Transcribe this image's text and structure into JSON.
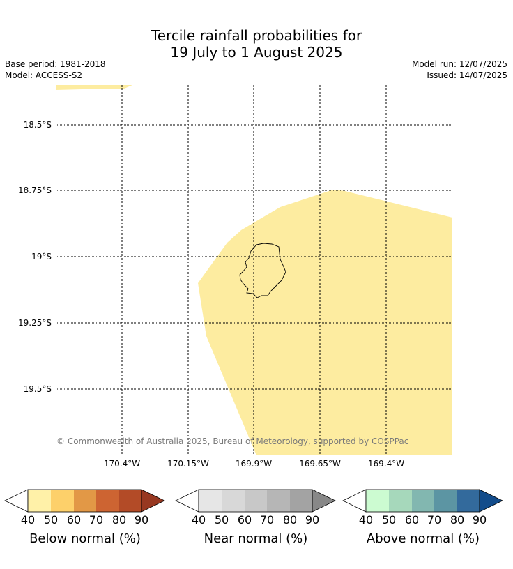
{
  "title": {
    "line1": "Tercile rainfall probabilities for",
    "line2": "19 July to 1 August 2025"
  },
  "meta": {
    "base_period": "Base period: 1981-2018",
    "model": "Model: ACCESS-S2",
    "model_run": "Model run: 12/07/2025",
    "issued": "Issued: 14/07/2025"
  },
  "map": {
    "lat_labels": [
      "18.5°S",
      "18.75°S",
      "19°S",
      "19.25°S",
      "19.5°S"
    ],
    "lon_labels": [
      "170.4°W",
      "170.15°W",
      "169.9°W",
      "169.65°W",
      "169.4°W"
    ],
    "copyright": "© Commonwealth of Australia 2025, Bureau of Meteorology, supported by COSPPac",
    "shading_color": "#fdeca0",
    "coast_color": "#000000"
  },
  "colorbars": [
    {
      "label": "Below normal (%)",
      "ticks": [
        "40",
        "50",
        "60",
        "70",
        "80",
        "90"
      ],
      "colors": [
        "#fff1a8",
        "#fdd06a",
        "#e29846",
        "#cd6432",
        "#b34b27",
        "#983821"
      ]
    },
    {
      "label": "Near normal (%)",
      "ticks": [
        "40",
        "50",
        "60",
        "70",
        "80",
        "90"
      ],
      "colors": [
        "#e6e6e6",
        "#d8d8d8",
        "#c8c8c8",
        "#b6b6b6",
        "#a3a3a3",
        "#888888"
      ]
    },
    {
      "label": "Above normal (%)",
      "ticks": [
        "40",
        "50",
        "60",
        "70",
        "80",
        "90"
      ],
      "colors": [
        "#ccfbd1",
        "#a6d8bb",
        "#82b7b0",
        "#5c95a3",
        "#336a9c",
        "#124c8b"
      ]
    }
  ]
}
